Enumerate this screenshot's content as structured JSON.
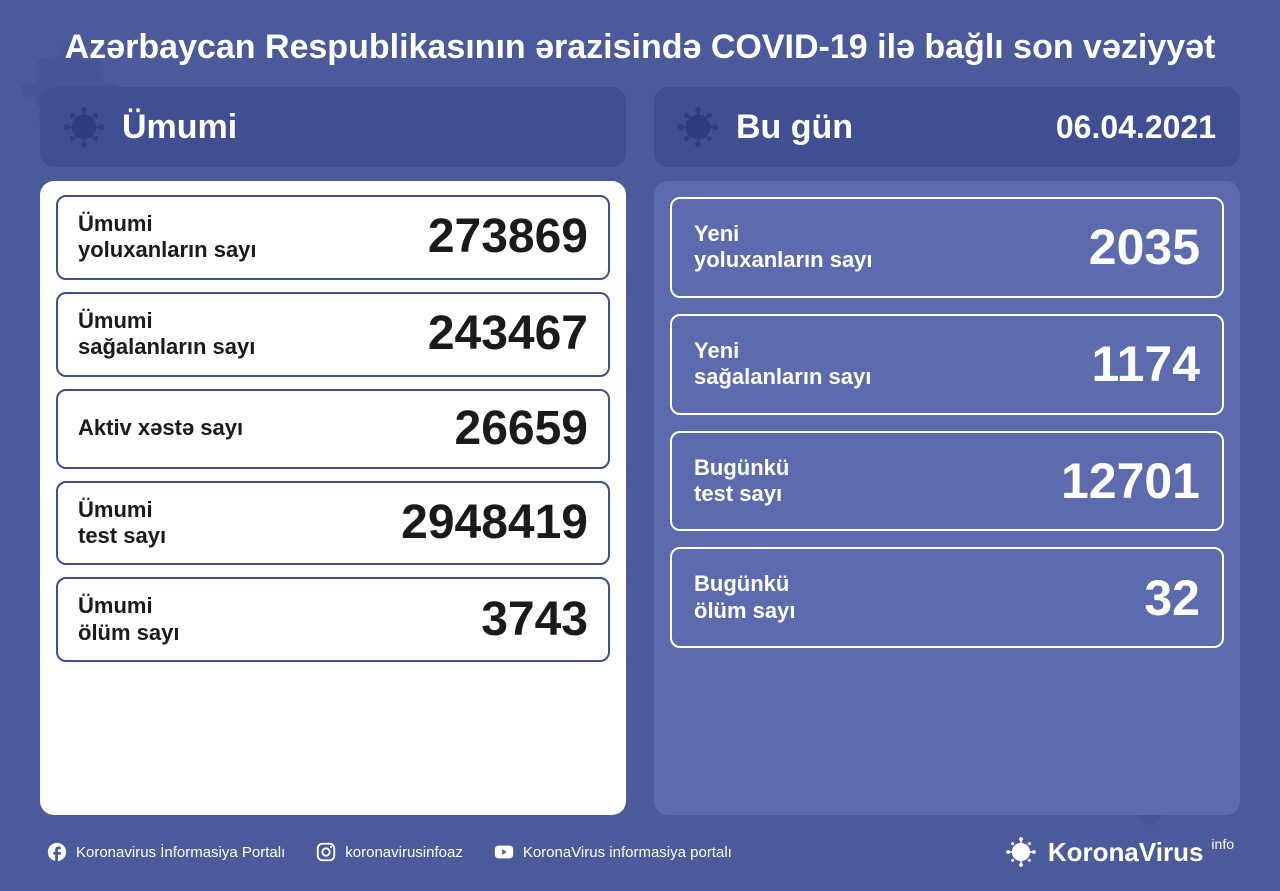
{
  "title": "Azərbaycan Respublikasının ərazisində COVID-19 ilə bağlı son vəziyyət",
  "colors": {
    "background": "#4a5a9a",
    "header_bg": "#3f4f92",
    "panel_light": "#ffffff",
    "panel_today": "#5b6bae",
    "text_dark": "#1a1a1a",
    "text_light": "#ffffff",
    "border_dark": "#3f4f92",
    "border_light": "#ffffff"
  },
  "total_panel": {
    "title": "Ümumi",
    "stats": [
      {
        "label": "Ümumi\nyoluxanların sayı",
        "value": "273869"
      },
      {
        "label": "Ümumi\nsağalanların sayı",
        "value": "243467"
      },
      {
        "label": "Aktiv xəstə sayı",
        "value": "26659"
      },
      {
        "label": "Ümumi\ntest sayı",
        "value": "2948419"
      },
      {
        "label": "Ümumi\nölüm sayı",
        "value": "3743"
      }
    ]
  },
  "today_panel": {
    "title": "Bu gün",
    "date": "06.04.2021",
    "stats": [
      {
        "label": "Yeni\nyoluxanların sayı",
        "value": "2035"
      },
      {
        "label": "Yeni\nsağalanların sayı",
        "value": "1174"
      },
      {
        "label": "Bugünkü\ntest sayı",
        "value": "12701"
      },
      {
        "label": "Bugünkü\nölüm sayı",
        "value": "32"
      }
    ]
  },
  "footer": {
    "facebook": "Koronavirus İnformasiya Portalı",
    "instagram": "koronavirusinfoaz",
    "youtube": "KoronaVirus informasiya portalı",
    "logo_text": "KoronaVirus",
    "logo_suffix": "info"
  }
}
